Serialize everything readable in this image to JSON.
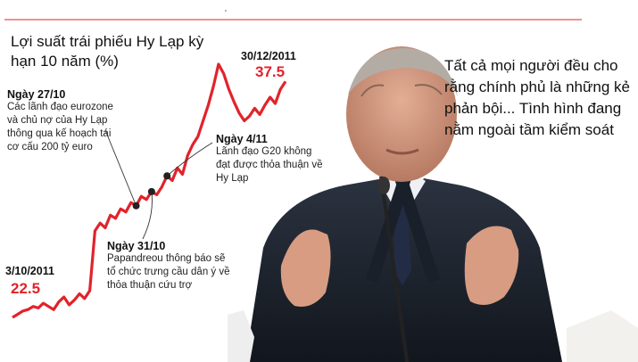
{
  "chart_data": {
    "type": "line",
    "title": "Lợi suất trái phiếu Hy Lạp kỳ hạn 10 năm (%)",
    "xlabel": "",
    "ylabel": "",
    "start_label": {
      "date": "3/10/2011",
      "value": "22.5"
    },
    "end_label": {
      "date": "30/12/2011",
      "value": "37.5"
    },
    "series": [
      {
        "values": [
          22.5,
          22.7,
          22.9,
          23.0,
          23.2,
          23.1,
          23.4,
          23.2,
          23.0,
          23.5,
          23.8,
          23.3,
          23.6,
          24.0,
          23.7,
          24.2,
          28.0,
          28.5,
          28.2,
          29.0,
          28.8,
          29.4,
          29.2,
          29.8,
          29.6,
          30.2,
          30.0,
          30.5,
          30.3,
          30.8,
          31.5,
          31.2,
          32.0,
          31.6,
          32.8,
          33.5,
          34.0,
          35.0,
          36.0,
          37.2,
          38.6,
          38.0,
          37.0,
          36.2,
          35.5,
          35.0,
          35.3,
          35.8,
          35.4,
          36.0,
          36.5,
          36.1,
          37.0,
          37.5
        ]
      }
    ],
    "color": "#e1232b",
    "annotations": [
      {
        "index": 24,
        "date": "Ngày 27/10",
        "text": "Các lãnh đạo eurozone và chủ nợ của Hy Lạp thông qua kế hoạch tái cơ cấu 200 tỷ euro"
      },
      {
        "index": 27,
        "date": "Ngày 31/10",
        "text": "Papandreou thông báo sẽ tổ chức trưng cầu dân ý về thỏa thuận cứu trợ"
      },
      {
        "index": 30,
        "date": "Ngày 4/11",
        "text": "Lãnh đạo G20 không đạt được thỏa thuận về Hy Lạp"
      }
    ]
  },
  "quote": "Tất cả mọi người đều cho rằng chính phủ là những kẻ phản bội... Tình hình đang nằm ngoài tầm kiểm soát",
  "colors": {
    "line": "#e1232b",
    "accent_red": "#e1232b"
  },
  "photo": {
    "subject": "man-in-dark-suit-speaking-portrait"
  }
}
